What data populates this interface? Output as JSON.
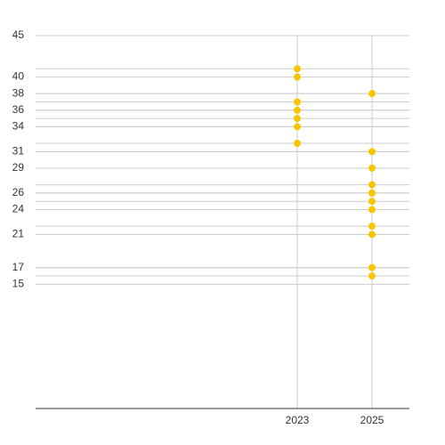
{
  "chart_data": {
    "type": "scatter",
    "x": [
      2023,
      2023,
      2023,
      2023,
      2023,
      2023,
      2023,
      2025,
      2025,
      2025,
      2025,
      2025,
      2025,
      2025,
      2025,
      2025,
      2025,
      2025
    ],
    "series": [
      {
        "color": "#f7c600",
        "values": [
          41,
          40,
          37,
          36,
          35,
          34,
          32,
          38,
          31,
          29,
          27,
          26,
          25,
          24,
          22,
          21,
          17,
          16
        ]
      }
    ],
    "xlim": [
      2016,
      2026
    ],
    "xticks": [
      2023,
      2025
    ],
    "ylim": [
      0,
      45
    ],
    "yticks": [
      15,
      17,
      21,
      24,
      26,
      29,
      31,
      34,
      36,
      38,
      40,
      45
    ],
    "grid": true
  }
}
